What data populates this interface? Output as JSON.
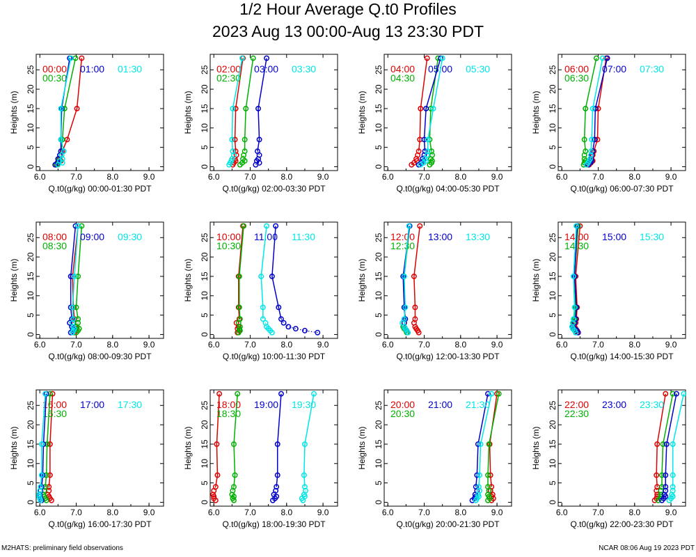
{
  "title": "1/2 Hour Average Q.t0 Profiles",
  "subtitle": "2023 Aug 13 00:00-Aug 13 23:30 PDT",
  "footer_left": "M2HATS: preliminary field observations",
  "footer_right": "NCAR 08:06 Aug 19 2023 PDT",
  "colors": {
    "series1": "#dd0000",
    "series2": "#00b000",
    "series3": "#0000cc",
    "series4": "#00e6e6"
  },
  "chart_data": {
    "type": "line",
    "ylabel": "Heights (m)",
    "xlim": [
      5.9,
      9.4
    ],
    "ylim": [
      -1,
      29
    ],
    "x_ticks": [
      "6.0",
      "7.0",
      "8.0",
      "9.0"
    ],
    "y_ticks": [
      "0",
      "5",
      "10",
      "15",
      "20",
      "25"
    ],
    "heights": [
      0.5,
      1,
      1.5,
      2,
      3,
      4,
      7,
      15,
      28
    ],
    "panels": [
      {
        "xlabel": "Q.t0(g/kg) 00:00-01:30 PDT",
        "series": [
          {
            "name": "00:00",
            "values": [
              6.48,
              6.52,
              6.58,
              6.55,
              6.6,
              6.62,
              6.75,
              7.02,
              7.15
            ]
          },
          {
            "name": "00:30",
            "values": [
              6.45,
              6.5,
              6.55,
              6.52,
              6.55,
              6.58,
              6.62,
              6.68,
              6.98
            ]
          },
          {
            "name": "01:00",
            "values": [
              6.42,
              6.48,
              6.55,
              6.5,
              6.55,
              6.58,
              6.58,
              6.6,
              6.82
            ]
          },
          {
            "name": "01:30",
            "values": [
              6.5,
              6.62,
              6.55,
              6.62,
              6.6,
              6.66,
              6.58,
              6.58,
              6.85
            ]
          }
        ]
      },
      {
        "xlabel": "Q.t0(g/kg) 02:00-03:30 PDT",
        "series": [
          {
            "name": "02:00",
            "values": [
              6.52,
              6.55,
              6.6,
              6.58,
              6.62,
              6.6,
              6.58,
              6.6,
              6.8
            ]
          },
          {
            "name": "02:30",
            "values": [
              6.72,
              6.78,
              6.85,
              6.8,
              6.82,
              6.85,
              6.85,
              6.88,
              7.08
            ]
          },
          {
            "name": "03:00",
            "values": [
              7.15,
              7.25,
              7.18,
              7.22,
              7.25,
              7.2,
              7.25,
              7.22,
              7.45
            ]
          },
          {
            "name": "03:30",
            "values": [
              6.42,
              6.45,
              6.48,
              6.5,
              6.55,
              6.52,
              6.5,
              6.52,
              6.78
            ]
          }
        ]
      },
      {
        "xlabel": "Q.t0(g/kg) 04:00-05:30 PDT",
        "series": [
          {
            "name": "04:00",
            "values": [
              6.65,
              6.72,
              6.8,
              6.78,
              6.82,
              6.85,
              6.88,
              6.9,
              7.08
            ]
          },
          {
            "name": "04:30",
            "values": [
              7.15,
              7.2,
              7.22,
              7.18,
              7.22,
              7.2,
              7.15,
              7.18,
              7.38
            ]
          },
          {
            "name": "05:00",
            "values": [
              6.85,
              6.92,
              6.98,
              6.95,
              7.0,
              7.02,
              7.0,
              7.05,
              7.45
            ]
          },
          {
            "name": "05:30",
            "values": [
              6.9,
              6.98,
              7.05,
              7.02,
              7.08,
              7.1,
              7.1,
              7.25,
              7.5
            ]
          }
        ]
      },
      {
        "xlabel": "Q.t0(g/kg) 06:00-07:30 PDT",
        "series": [
          {
            "name": "06:00",
            "values": [
              6.75,
              6.8,
              6.85,
              6.82,
              6.85,
              6.88,
              6.98,
              7.0,
              7.22
            ]
          },
          {
            "name": "06:30",
            "values": [
              6.6,
              6.62,
              6.65,
              6.62,
              6.62,
              6.65,
              6.62,
              6.65,
              6.95
            ]
          },
          {
            "name": "07:00",
            "values": [
              6.72,
              6.78,
              6.82,
              6.8,
              6.82,
              6.85,
              6.9,
              6.92,
              7.25
            ]
          },
          {
            "name": "07:30",
            "values": [
              6.68,
              6.72,
              6.75,
              6.78,
              6.8,
              6.8,
              6.82,
              6.85,
              7.12
            ]
          }
        ]
      },
      {
        "xlabel": "Q.t0(g/kg) 08:00-09:30 PDT",
        "series": [
          {
            "name": "08:00",
            "values": [
              6.95,
              7.0,
              7.0,
              6.98,
              6.92,
              6.95,
              6.92,
              6.9,
              7.05
            ]
          },
          {
            "name": "08:30",
            "values": [
              7.0,
              7.05,
              7.08,
              7.02,
              7.05,
              7.05,
              7.0,
              7.05,
              7.15
            ]
          },
          {
            "name": "09:00",
            "values": [
              6.85,
              6.9,
              6.92,
              6.88,
              6.82,
              6.88,
              6.85,
              6.85,
              6.98
            ]
          },
          {
            "name": "09:30",
            "values": [
              6.9,
              6.92,
              6.95,
              6.92,
              6.9,
              6.92,
              6.9,
              6.95,
              7.05
            ]
          }
        ]
      },
      {
        "xlabel": "Q.t0(g/kg) 10:00-11:30 PDT",
        "series": [
          {
            "name": "10:00",
            "values": [
              6.65,
              6.7,
              6.65,
              6.68,
              6.62,
              6.7,
              6.68,
              6.68,
              6.8
            ]
          },
          {
            "name": "10:30",
            "values": [
              6.68,
              6.72,
              6.7,
              6.72,
              6.68,
              6.72,
              6.7,
              6.7,
              6.82
            ]
          },
          {
            "name": "11:00",
            "values": [
              8.85,
              8.5,
              8.25,
              8.05,
              7.92,
              7.85,
              7.78,
              7.6,
              7.7
            ]
          },
          {
            "name": "11:30",
            "values": [
              7.6,
              7.55,
              7.5,
              7.45,
              7.42,
              7.35,
              7.35,
              7.3,
              7.45
            ]
          }
        ]
      },
      {
        "xlabel": "Q.t0(g/kg) 12:00-13:30 PDT",
        "series": [
          {
            "name": "12:00",
            "values": [
              6.85,
              6.82,
              6.78,
              6.75,
              6.72,
              6.75,
              6.75,
              6.72,
              6.88
            ]
          },
          {
            "name": "12:30",
            "values": [
              6.52,
              6.5,
              6.45,
              6.42,
              6.45,
              6.48,
              6.45,
              6.45,
              6.6
            ]
          },
          {
            "name": "13:00",
            "values": [
              6.55,
              6.52,
              6.48,
              6.45,
              6.45,
              6.48,
              6.45,
              6.42,
              6.6
            ]
          },
          {
            "name": "13:30",
            "values": [
              6.55,
              6.52,
              6.48,
              6.45,
              6.4,
              6.45,
              6.48,
              6.45,
              6.58
            ]
          }
        ]
      },
      {
        "xlabel": "Q.t0(g/kg) 14:00-15:30 PDT",
        "series": [
          {
            "name": "14:00",
            "values": [
              6.42,
              6.4,
              6.38,
              6.35,
              6.38,
              6.4,
              6.42,
              6.38,
              6.5
            ]
          },
          {
            "name": "14:30",
            "values": [
              6.38,
              6.35,
              6.32,
              6.3,
              6.32,
              6.35,
              6.38,
              6.35,
              6.45
            ]
          },
          {
            "name": "15:00",
            "values": [
              6.45,
              6.42,
              6.35,
              6.3,
              6.35,
              6.38,
              6.4,
              6.35,
              6.42
            ]
          },
          {
            "name": "15:30",
            "values": [
              6.38,
              6.35,
              6.3,
              6.28,
              6.3,
              6.32,
              6.35,
              6.32,
              6.4
            ]
          }
        ]
      },
      {
        "xlabel": "Q.t0(g/kg) 16:00-17:30 PDT",
        "series": [
          {
            "name": "16:00",
            "values": [
              6.32,
              6.28,
              6.25,
              6.22,
              6.25,
              6.25,
              6.28,
              6.28,
              6.35
            ]
          },
          {
            "name": "16:30",
            "values": [
              6.18,
              6.15,
              6.12,
              6.1,
              6.12,
              6.15,
              6.18,
              6.2,
              6.28
            ]
          },
          {
            "name": "17:00",
            "values": [
              6.05,
              6.02,
              6.0,
              6.0,
              6.02,
              6.05,
              6.08,
              6.1,
              6.18
            ]
          },
          {
            "name": "17:30",
            "values": [
              6.02,
              6.0,
              5.98,
              5.98,
              6.0,
              6.02,
              6.05,
              6.05,
              6.15
            ]
          }
        ]
      },
      {
        "xlabel": "Q.t0(g/kg) 18:00-19:30 PDT",
        "series": [
          {
            "name": "18:00",
            "values": [
              6.05,
              6.0,
              6.0,
              5.98,
              6.0,
              6.05,
              6.1,
              6.08,
              6.15
            ]
          },
          {
            "name": "18:30",
            "values": [
              6.55,
              6.52,
              6.55,
              6.5,
              6.52,
              6.55,
              6.58,
              6.55,
              6.65
            ]
          },
          {
            "name": "19:00",
            "values": [
              7.62,
              7.68,
              7.72,
              7.65,
              7.7,
              7.72,
              7.75,
              7.75,
              7.85
            ]
          },
          {
            "name": "19:30",
            "values": [
              8.45,
              8.42,
              8.5,
              8.48,
              8.52,
              8.5,
              8.48,
              8.5,
              8.75
            ]
          }
        ]
      },
      {
        "xlabel": "Q.t0(g/kg) 20:00-21:30 PDT",
        "series": [
          {
            "name": "20:00",
            "values": [
              8.85,
              8.9,
              8.85,
              8.88,
              8.82,
              8.85,
              8.82,
              8.8,
              9.0
            ]
          },
          {
            "name": "20:30",
            "values": [
              8.75,
              8.8,
              8.78,
              8.75,
              8.78,
              8.75,
              8.75,
              8.78,
              9.05
            ]
          },
          {
            "name": "21:00",
            "values": [
              8.32,
              8.38,
              8.42,
              8.4,
              8.45,
              8.42,
              8.45,
              8.48,
              8.75
            ]
          },
          {
            "name": "21:30",
            "values": [
              8.42,
              8.45,
              8.5,
              8.48,
              8.52,
              8.5,
              8.52,
              8.55,
              8.85
            ]
          }
        ]
      },
      {
        "xlabel": "Q.t0(g/kg) 22:00-23:30 PDT",
        "series": [
          {
            "name": "22:00",
            "values": [
              8.55,
              8.6,
              8.62,
              8.62,
              8.6,
              8.62,
              8.6,
              8.62,
              8.85
            ]
          },
          {
            "name": "22:30",
            "values": [
              8.65,
              8.7,
              8.72,
              8.72,
              8.72,
              8.75,
              8.75,
              8.78,
              9.05
            ]
          },
          {
            "name": "23:00",
            "values": [
              8.75,
              8.8,
              8.85,
              8.82,
              8.85,
              8.85,
              8.85,
              8.88,
              9.15
            ]
          },
          {
            "name": "23:30",
            "values": [
              8.95,
              9.0,
              9.05,
              9.02,
              9.05,
              9.05,
              9.05,
              9.05,
              9.35
            ]
          }
        ]
      }
    ]
  }
}
